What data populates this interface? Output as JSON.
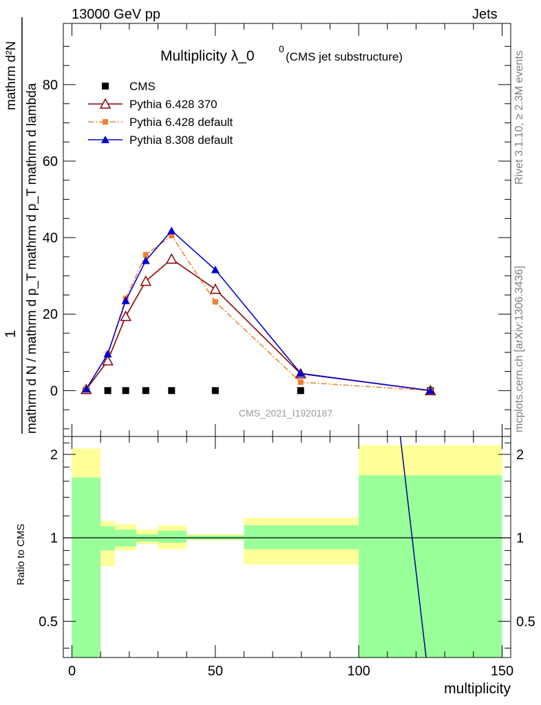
{
  "header": {
    "left": "13000 GeV pp",
    "right": "Jets"
  },
  "side_text": {
    "rivet": "Rivet 3.1.10, ≥ 2.3M events",
    "mcplots": "mcplots.cern.ch [arXiv:1306.3436]"
  },
  "chart_data": [
    {
      "type": "scatter",
      "title": "Multiplicity λ_0",
      "title_sup": "0",
      "subtitle": "(CMS jet substructure)",
      "analysis_label": "CMS_2021_I1920187",
      "ylabel_numerator": "1",
      "ylabel_denominator": "mathrm d N / mathrm d p_T mathrm d p_T mathrm d lambda",
      "ylabel_top": "mathrm d²N",
      "xlim": [
        -3,
        153
      ],
      "ylim": [
        -12,
        96
      ],
      "yticks": [
        0,
        20,
        40,
        60,
        80
      ],
      "grid": false,
      "legend_position": "top-left",
      "series": [
        {
          "name": "CMS",
          "color": "#000000",
          "marker": "square",
          "x": [
            5,
            12.5,
            18.75,
            25.75,
            34.75,
            50,
            79.75,
            125
          ],
          "y": [
            0,
            0,
            0,
            0,
            0,
            0,
            0,
            0
          ]
        },
        {
          "name": "Pythia 6.428 370",
          "color": "#8b0000",
          "marker": "open-triangle",
          "line": "solid",
          "x": [
            5,
            12.5,
            18.75,
            25.75,
            34.75,
            50,
            79.75,
            125
          ],
          "y": [
            0.3,
            7.8,
            19.4,
            28.6,
            34.4,
            26.5,
            4.4,
            0
          ]
        },
        {
          "name": "Pythia 6.428 default",
          "color": "#f08030",
          "marker": "square-small",
          "line": "dashdot",
          "x": [
            5,
            12.5,
            18.75,
            25.75,
            34.75,
            50,
            79.75,
            125
          ],
          "y": [
            0.5,
            9.5,
            24.1,
            35.5,
            40.5,
            23.2,
            2.2,
            0
          ]
        },
        {
          "name": "Pythia 8.308 default",
          "color": "#0000d0",
          "marker": "triangle",
          "line": "solid",
          "x": [
            5,
            12.5,
            18.75,
            25.75,
            34.75,
            50,
            79.75,
            125
          ],
          "y": [
            0.4,
            9.6,
            23.5,
            34.0,
            41.8,
            31.6,
            4.5,
            0
          ]
        }
      ]
    },
    {
      "type": "area",
      "ylabel": "Ratio to CMS",
      "xlabel": "multiplicity",
      "xlim": [
        -3,
        153
      ],
      "ylim": [
        0.37,
        2.32
      ],
      "yscale": "log",
      "yticks": [
        0.5,
        1,
        2
      ],
      "xticks": [
        0,
        50,
        100,
        150
      ],
      "bins": [
        {
          "xlo": 0,
          "xhi": 10,
          "green": [
            0.37,
            1.65
          ],
          "yellow": [
            0.37,
            2.1
          ]
        },
        {
          "xlo": 10,
          "xhi": 15,
          "green": [
            0.9,
            1.1
          ],
          "yellow": [
            0.79,
            1.15
          ]
        },
        {
          "xlo": 15,
          "xhi": 22.5,
          "green": [
            0.93,
            1.07
          ],
          "yellow": [
            0.9,
            1.12
          ]
        },
        {
          "xlo": 22.5,
          "xhi": 30,
          "green": [
            0.97,
            1.03
          ],
          "yellow": [
            0.95,
            1.07
          ]
        },
        {
          "xlo": 30,
          "xhi": 40,
          "green": [
            0.96,
            1.06
          ],
          "yellow": [
            0.91,
            1.11
          ]
        },
        {
          "xlo": 40,
          "xhi": 60,
          "green": [
            0.985,
            1.02
          ],
          "yellow": [
            0.98,
            1.03
          ]
        },
        {
          "xlo": 60,
          "xhi": 100,
          "green": [
            0.91,
            1.11
          ],
          "yellow": [
            0.8,
            1.18
          ]
        },
        {
          "xlo": 100,
          "xhi": 150,
          "green": [
            0.37,
            1.68
          ],
          "yellow": [
            0.37,
            2.16
          ]
        }
      ],
      "ratio_line": {
        "name": "Pythia 8.308 default",
        "color": "#00008b",
        "x": [
          114.5,
          123.5
        ],
        "y": [
          2.32,
          0.37
        ]
      }
    }
  ]
}
